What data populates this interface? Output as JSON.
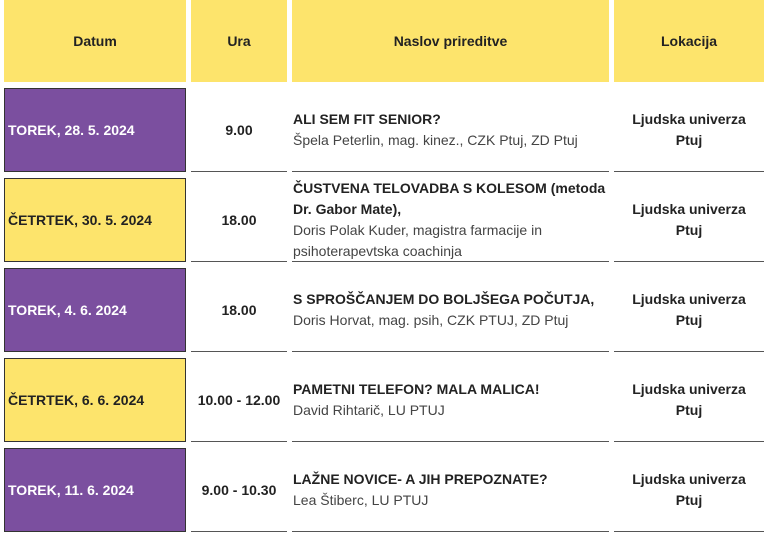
{
  "header": {
    "columns": [
      "Datum",
      "Ura",
      "Naslov prireditve",
      "Lokacija"
    ]
  },
  "rows": [
    {
      "date": "TOREK, 28. 5. 2024",
      "time": "9.00",
      "title": "ALI SEM FIT SENIOR?",
      "subtitle": "Špela Peterlin, mag. kinez., CZK Ptuj, ZD Ptuj",
      "location": "Ljudska univerza Ptuj"
    },
    {
      "date": "ČETRTEK, 30. 5. 2024",
      "time": "18.00",
      "title": "ČUSTVENA TELOVADBA S KOLESOM (metoda Dr. Gabor Mate),",
      "subtitle": "Doris Polak Kuder, magistra farmacije in psihoterapevtska coachinja",
      "location": "Ljudska univerza Ptuj"
    },
    {
      "date": "TOREK, 4. 6. 2024",
      "time": "18.00",
      "title": "S SPROŠČANJEM DO BOLJŠEGA POČUTJA,",
      "subtitle": "Doris Horvat, mag. psih, CZK PTUJ, ZD Ptuj",
      "location": "Ljudska univerza Ptuj"
    },
    {
      "date": "ČETRTEK, 6. 6. 2024",
      "time": "10.00 - 12.00",
      "title": "PAMETNI TELEFON? MALA MALICA!",
      "subtitle": "David Rihtarič, LU PTUJ",
      "location": "Ljudska univerza Ptuj"
    },
    {
      "date": "TOREK, 11. 6. 2024",
      "time": "9.00 - 10.30",
      "title": "LAŽNE NOVICE- A JIH PREPOZNATE?",
      "subtitle": "Lea Štiberc, LU PTUJ",
      "location": "Ljudska univerza Ptuj"
    }
  ]
}
